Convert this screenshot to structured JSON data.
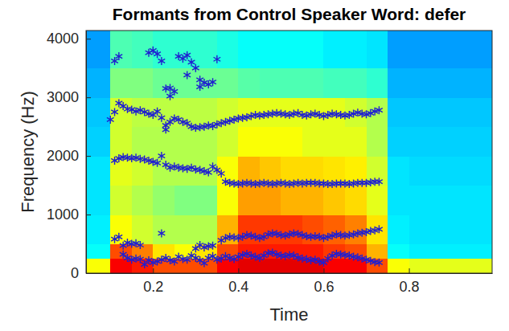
{
  "chart_data": {
    "type": "scatter",
    "title": "Formants from Control Speaker Word: defer",
    "x_label": "Time",
    "y_label": "Frequency (Hz)",
    "xlim": [
      0.043,
      0.995
    ],
    "ylim": [
      0,
      4140
    ],
    "xticks": [
      0.2,
      0.4,
      0.6,
      0.8
    ],
    "yticks": [
      0,
      1000,
      2000,
      3000,
      4000
    ],
    "grid": false,
    "marker": "asterisk",
    "color": "#1f1fd1",
    "series": [
      {
        "x": [
          0.13,
          0.14,
          0.15,
          0.16,
          0.17,
          0.18,
          0.19,
          0.2,
          0.21,
          0.22,
          0.23,
          0.24,
          0.25,
          0.26,
          0.27,
          0.28,
          0.29,
          0.3,
          0.31,
          0.32,
          0.33,
          0.34,
          0.35,
          0.36,
          0.37,
          0.38,
          0.39,
          0.4,
          0.41,
          0.42,
          0.43,
          0.44,
          0.45,
          0.46,
          0.47,
          0.48,
          0.49,
          0.5,
          0.51,
          0.52,
          0.53,
          0.54,
          0.55,
          0.56,
          0.57,
          0.58,
          0.59,
          0.6,
          0.61,
          0.62,
          0.63,
          0.64,
          0.65,
          0.66,
          0.67,
          0.68,
          0.69,
          0.7,
          0.71,
          0.72,
          0.73
        ],
        "values": [
          320,
          260,
          230,
          250,
          240,
          150,
          220,
          180,
          200,
          230,
          260,
          220,
          200,
          280,
          240,
          230,
          300,
          260,
          220,
          170,
          260,
          290,
          230,
          250,
          290,
          260,
          240,
          280,
          310,
          330,
          300,
          280,
          260,
          300,
          340,
          350,
          320,
          300,
          290,
          310,
          300,
          270,
          250,
          240,
          220,
          230,
          200,
          180,
          250,
          300,
          330,
          320,
          310,
          300,
          280,
          270,
          250,
          230,
          210,
          190,
          180
        ]
      },
      {
        "x": [
          0.11,
          0.12,
          0.13,
          0.14,
          0.15,
          0.16,
          0.17,
          0.3,
          0.31,
          0.32,
          0.33,
          0.34,
          0.36,
          0.37,
          0.38,
          0.39,
          0.4,
          0.41,
          0.42,
          0.43,
          0.44,
          0.45,
          0.46,
          0.47,
          0.48,
          0.49,
          0.5,
          0.51,
          0.52,
          0.53,
          0.54,
          0.55,
          0.56,
          0.57,
          0.58,
          0.59,
          0.6,
          0.61,
          0.62,
          0.63,
          0.64,
          0.65,
          0.66,
          0.67,
          0.68,
          0.69,
          0.7,
          0.71,
          0.72,
          0.73
        ],
        "values": [
          580,
          620,
          470,
          520,
          500,
          510,
          480,
          420,
          480,
          440,
          460,
          470,
          560,
          600,
          620,
          610,
          600,
          620,
          650,
          640,
          620,
          600,
          620,
          660,
          680,
          670,
          650,
          640,
          660,
          680,
          670,
          650,
          630,
          620,
          630,
          620,
          600,
          620,
          640,
          660,
          650,
          640,
          650,
          660,
          680,
          690,
          700,
          720,
          730,
          750
        ]
      },
      {
        "x": [
          0.11,
          0.12,
          0.13,
          0.14,
          0.15,
          0.16,
          0.17,
          0.18,
          0.19,
          0.2,
          0.21,
          0.22,
          0.23,
          0.24,
          0.25,
          0.26,
          0.27,
          0.28,
          0.29,
          0.3,
          0.31,
          0.32,
          0.33,
          0.34,
          0.35,
          0.36,
          0.37,
          0.38,
          0.39,
          0.4,
          0.41,
          0.42,
          0.43,
          0.44,
          0.45,
          0.46,
          0.47,
          0.48,
          0.49,
          0.5,
          0.51,
          0.52,
          0.53,
          0.54,
          0.55,
          0.56,
          0.57,
          0.58,
          0.59,
          0.6,
          0.61,
          0.62,
          0.63,
          0.64,
          0.65,
          0.66,
          0.67,
          0.68,
          0.69,
          0.7,
          0.71,
          0.72,
          0.73
        ],
        "values": [
          1920,
          1960,
          1980,
          1970,
          1960,
          1970,
          1950,
          1940,
          1920,
          1900,
          1880,
          2000,
          1850,
          1800,
          1820,
          1800,
          1790,
          1780,
          1800,
          1770,
          1760,
          1740,
          1720,
          1820,
          1760,
          1700,
          1560,
          1540,
          1530,
          1520,
          1530,
          1540,
          1530,
          1520,
          1530,
          1540,
          1530,
          1520,
          1530,
          1540,
          1530,
          1520,
          1530,
          1540,
          1530,
          1540,
          1540,
          1540,
          1530,
          1530,
          1520,
          1520,
          1530,
          1530,
          1530,
          1520,
          1530,
          1540,
          1540,
          1540,
          1550,
          1560,
          1560
        ]
      },
      {
        "x": [
          0.1,
          0.11,
          0.12,
          0.13,
          0.14,
          0.15,
          0.16,
          0.17,
          0.18,
          0.19,
          0.2,
          0.21,
          0.22,
          0.23,
          0.24,
          0.25,
          0.26,
          0.27,
          0.28,
          0.29,
          0.3,
          0.31,
          0.32,
          0.33,
          0.34,
          0.35,
          0.36,
          0.37,
          0.38,
          0.39,
          0.4,
          0.41,
          0.42,
          0.43,
          0.44,
          0.45,
          0.46,
          0.47,
          0.48,
          0.49,
          0.5,
          0.51,
          0.52,
          0.53,
          0.54,
          0.55,
          0.56,
          0.57,
          0.58,
          0.59,
          0.6,
          0.61,
          0.62,
          0.63,
          0.64,
          0.65,
          0.66,
          0.67,
          0.68,
          0.69,
          0.7,
          0.71,
          0.72,
          0.73
        ],
        "values": [
          2620,
          2750,
          2900,
          2850,
          2800,
          2790,
          2760,
          2780,
          2750,
          2720,
          2700,
          2760,
          2650,
          2520,
          2580,
          2640,
          2620,
          2580,
          2560,
          2500,
          2480,
          2490,
          2500,
          2520,
          2510,
          2540,
          2560,
          2580,
          2600,
          2620,
          2640,
          2650,
          2660,
          2680,
          2700,
          2690,
          2700,
          2710,
          2720,
          2730,
          2720,
          2710,
          2700,
          2720,
          2730,
          2700,
          2690,
          2710,
          2720,
          2700,
          2680,
          2700,
          2720,
          2710,
          2700,
          2690,
          2700,
          2720,
          2740,
          2720,
          2710,
          2730,
          2760,
          2780
        ]
      },
      {
        "x": [
          0.11,
          0.12,
          0.19,
          0.2,
          0.21,
          0.22,
          0.22,
          0.23,
          0.23,
          0.24,
          0.24,
          0.25,
          0.26,
          0.27,
          0.28,
          0.28,
          0.29,
          0.3,
          0.31,
          0.31,
          0.32,
          0.33,
          0.34,
          0.35
        ],
        "values": [
          3620,
          3700,
          3760,
          3800,
          3740,
          3620,
          680,
          3150,
          2450,
          3020,
          3160,
          3100,
          3700,
          3660,
          3380,
          3720,
          3600,
          3500,
          3300,
          3180,
          3250,
          3220,
          3260,
          3650
        ]
      }
    ],
    "spectrogram": {
      "time_edges": [
        0.043,
        0.1,
        0.15,
        0.2,
        0.25,
        0.3,
        0.35,
        0.4,
        0.45,
        0.5,
        0.55,
        0.6,
        0.65,
        0.7,
        0.75,
        0.8,
        0.85,
        0.9,
        0.995
      ],
      "frequency_edges": [
        0,
        250,
        500,
        1000,
        1500,
        2000,
        2500,
        3000,
        3500,
        4140
      ],
      "level_range": [
        0,
        100
      ],
      "level": [
        [
          62,
          88,
          85,
          80,
          80,
          80,
          88,
          90,
          90,
          90,
          90,
          88,
          88,
          80,
          62,
          60,
          60,
          60
        ],
        [
          38,
          80,
          75,
          65,
          62,
          65,
          80,
          85,
          85,
          85,
          85,
          82,
          80,
          70,
          38,
          36,
          36,
          36
        ],
        [
          36,
          62,
          58,
          55,
          55,
          55,
          70,
          82,
          82,
          82,
          80,
          78,
          75,
          65,
          36,
          35,
          35,
          35
        ],
        [
          35,
          58,
          55,
          52,
          50,
          50,
          62,
          72,
          72,
          70,
          70,
          68,
          66,
          60,
          35,
          35,
          35,
          35
        ],
        [
          35,
          60,
          58,
          55,
          55,
          55,
          62,
          70,
          68,
          66,
          66,
          65,
          64,
          58,
          35,
          34,
          34,
          34
        ],
        [
          33,
          58,
          55,
          55,
          55,
          55,
          58,
          62,
          62,
          62,
          60,
          60,
          60,
          55,
          33,
          33,
          33,
          33
        ],
        [
          32,
          58,
          56,
          56,
          56,
          56,
          58,
          60,
          60,
          60,
          60,
          60,
          58,
          55,
          32,
          32,
          32,
          32
        ],
        [
          30,
          50,
          50,
          48,
          48,
          48,
          48,
          46,
          45,
          45,
          45,
          44,
          44,
          42,
          30,
          30,
          30,
          30
        ],
        [
          28,
          45,
          44,
          42,
          42,
          42,
          40,
          38,
          38,
          38,
          38,
          36,
          36,
          35,
          28,
          28,
          28,
          28
        ]
      ]
    }
  }
}
